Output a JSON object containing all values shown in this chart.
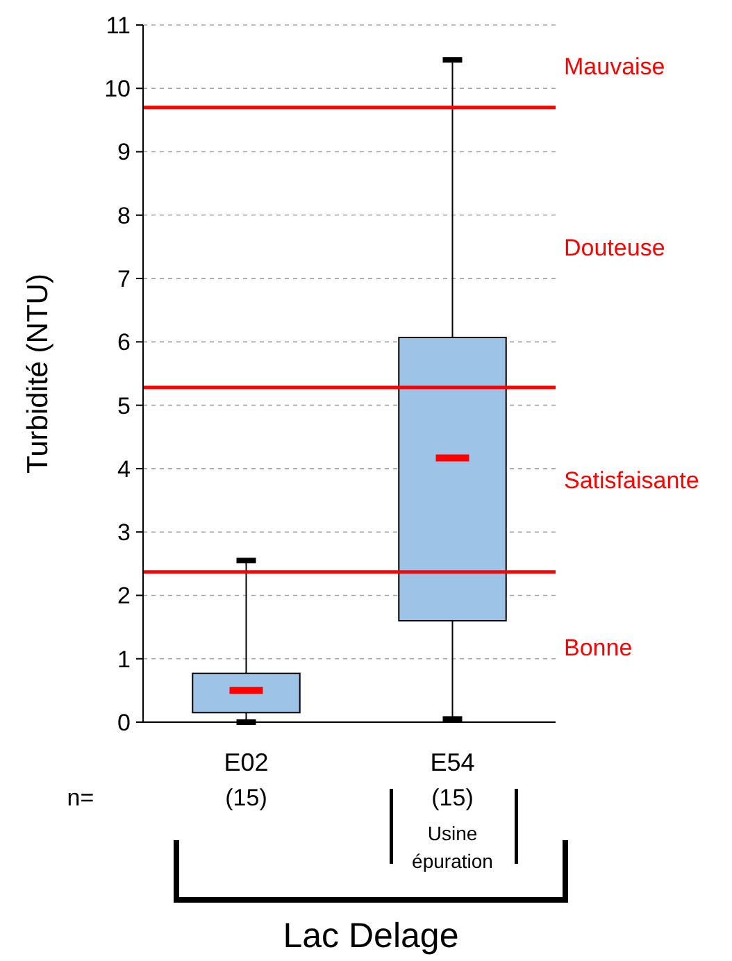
{
  "chart_data": {
    "type": "box",
    "ylabel": "Turbidité  (NTU)",
    "xlabel": "Lac Delage",
    "categories": [
      "E02",
      "E54"
    ],
    "series": [
      {
        "color": "#9dc3e6",
        "boxes": [
          {
            "low": 0,
            "q1": 0.15,
            "median": 0.5,
            "q3": 0.77,
            "high": 2.55
          },
          {
            "low": 0.05,
            "q1": 1.6,
            "median": 4.17,
            "q3": 6.07,
            "high": 10.45
          }
        ]
      }
    ],
    "ylim": [
      0,
      11
    ],
    "yticks": [
      0,
      1,
      2,
      3,
      4,
      5,
      6,
      7,
      8,
      9,
      10,
      11
    ],
    "grid": "y",
    "ref_lines": [
      {
        "axis": "y",
        "value": 9.7,
        "color": "#ff0000"
      },
      {
        "axis": "y",
        "value": 5.28,
        "color": "#ff0000"
      },
      {
        "axis": "y",
        "value": 2.37,
        "color": "#ff0000"
      }
    ],
    "annotations": [
      "Mauvaise",
      "Douteuse",
      "Satisfaisante",
      "Bonne",
      "n=",
      "(15)",
      "(15)",
      "Usine épuration"
    ]
  }
}
